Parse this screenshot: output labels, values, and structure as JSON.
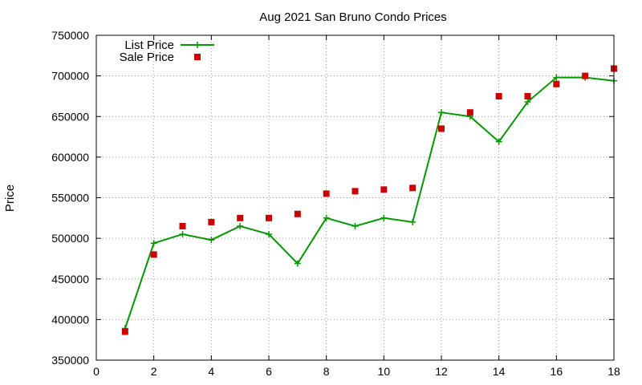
{
  "chart_data": {
    "type": "line",
    "title": "Aug 2021 San Bruno Condo Prices",
    "xlabel": "",
    "ylabel": "Price",
    "xlim": [
      0,
      18
    ],
    "ylim": [
      350000,
      750000
    ],
    "xticks": [
      0,
      2,
      4,
      6,
      8,
      10,
      12,
      14,
      16,
      18
    ],
    "yticks": [
      350000,
      400000,
      450000,
      500000,
      550000,
      600000,
      650000,
      700000,
      750000
    ],
    "grid": true,
    "legend_position": "top-left",
    "series": [
      {
        "name": "List Price",
        "style": "line-with-plus-markers",
        "color": "#009900",
        "x": [
          1,
          2,
          3,
          4,
          5,
          6,
          7,
          8,
          9,
          10,
          11,
          12,
          13,
          14,
          15,
          16,
          17,
          18
        ],
        "y": [
          389000,
          494000,
          505000,
          498000,
          515000,
          505000,
          469000,
          525000,
          515000,
          525000,
          520000,
          655000,
          650000,
          619000,
          668000,
          698000,
          698000,
          694000
        ]
      },
      {
        "name": "Sale Price",
        "style": "square-markers",
        "color": "#cc0000",
        "x": [
          1,
          2,
          3,
          4,
          5,
          6,
          7,
          8,
          9,
          10,
          11,
          12,
          13,
          14,
          15,
          16,
          17,
          18
        ],
        "y": [
          385000,
          480000,
          515000,
          520000,
          525000,
          525000,
          530000,
          555000,
          558000,
          560000,
          562000,
          635000,
          655000,
          675000,
          675000,
          690000,
          700000,
          709000
        ]
      }
    ]
  }
}
